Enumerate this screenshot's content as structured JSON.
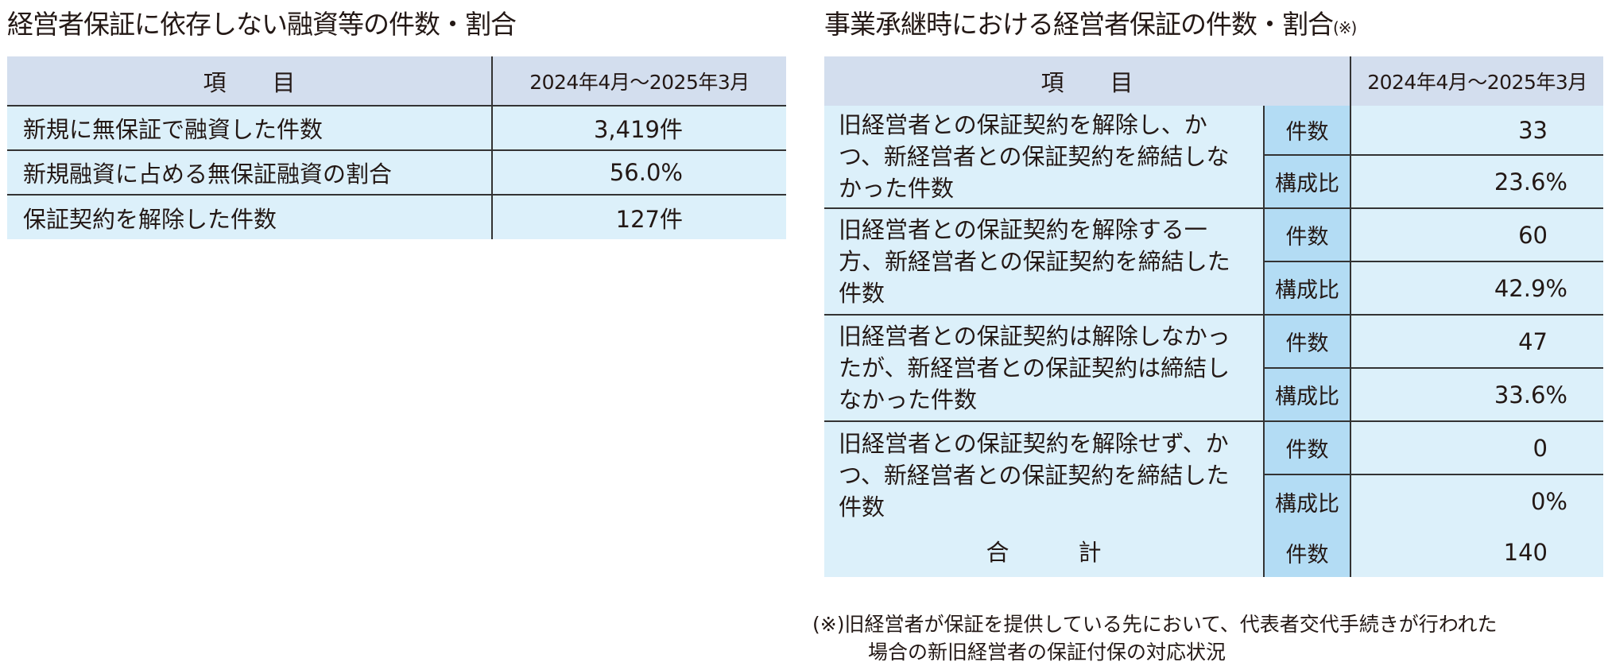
{
  "left": {
    "title": "経営者保証に依存しない融資等の件数・割合",
    "header": {
      "item": "項　　目",
      "period": "2024年4月～2025年3月"
    },
    "rows": [
      {
        "label": "新規に無保証で融資した件数",
        "value": "3,419件"
      },
      {
        "label": "新規融資に占める無保証融資の割合",
        "value": "56.0%"
      },
      {
        "label": "保証契約を解除した件数",
        "value": "127件"
      }
    ]
  },
  "right": {
    "title": "事業承継時における経営者保証の件数・割合",
    "title_mark": "(※)",
    "header": {
      "item": "項　　目",
      "period": "2024年4月～2025年3月"
    },
    "groups": [
      {
        "label": "旧経営者との保証契約を解除し、かつ、新経営者との保証契約を締結しなかった件数",
        "count_label": "件数",
        "count": "33",
        "ratio_label": "構成比",
        "ratio": "23.6%"
      },
      {
        "label": "旧経営者との保証契約を解除する一方、新経営者との保証契約を締結した件数",
        "count_label": "件数",
        "count": "60",
        "ratio_label": "構成比",
        "ratio": "42.9%"
      },
      {
        "label": "旧経営者との保証契約は解除しなかったが、新経営者との保証契約は締結しなかった件数",
        "count_label": "件数",
        "count": "47",
        "ratio_label": "構成比",
        "ratio": "33.6%"
      },
      {
        "label": "旧経営者との保証契約を解除せず、かつ、新経営者との保証契約を締結した件数",
        "count_label": "件数",
        "count": "0",
        "ratio_label": "構成比",
        "ratio": "0%"
      }
    ],
    "total": {
      "label": "合　　　計",
      "count_label": "件数",
      "count": "140"
    },
    "footnote": {
      "line1": "(※)旧経営者が保証を提供している先において、代表者交代手続きが行われた",
      "line2": "場合の新旧経営者の保証付保の対応状況"
    }
  }
}
